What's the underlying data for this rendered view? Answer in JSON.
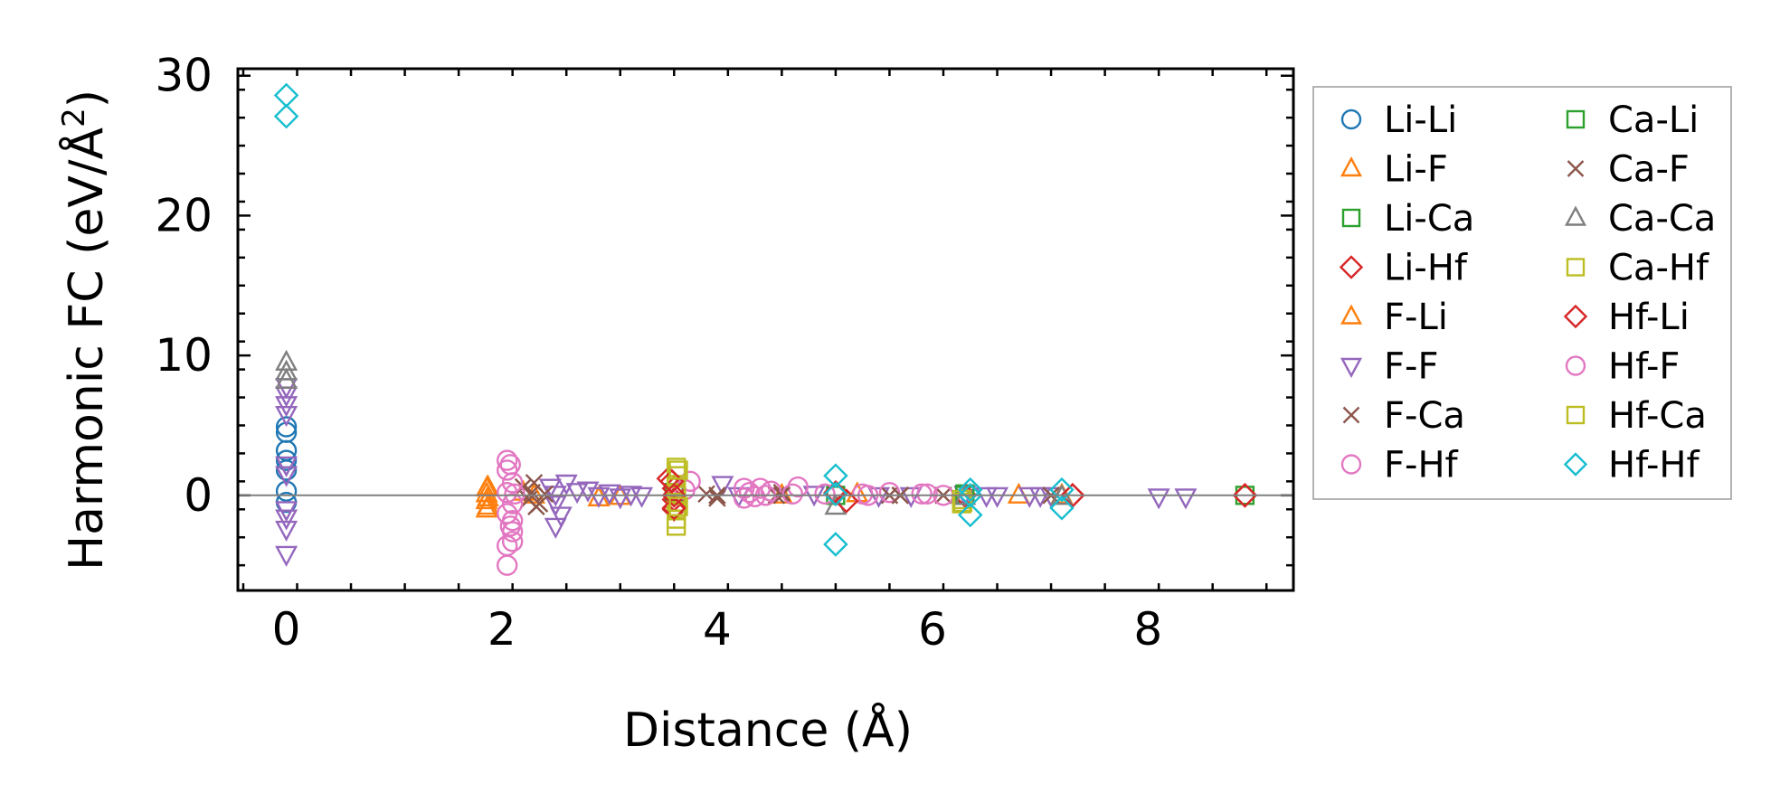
{
  "chart_data": {
    "type": "scatter",
    "xlabel": "Distance (Å)",
    "ylabel_main": "Harmonic FC (eV/Å",
    "ylabel_sup": "2",
    "ylabel_close": ")",
    "xlim": [
      -0.45,
      9.35
    ],
    "ylim": [
      -6.8,
      30.5
    ],
    "x_ticks": [
      0,
      2,
      4,
      6,
      8
    ],
    "y_ticks": [
      0,
      10,
      20,
      30
    ],
    "x_tick_labels": [
      "0",
      "2",
      "4",
      "6",
      "8"
    ],
    "y_tick_labels": [
      "0",
      "10",
      "20",
      "30"
    ],
    "zero_line": 0,
    "legend_position": "outside-right",
    "series": [
      {
        "name": "Li-Li",
        "marker": "circle",
        "color": "#1f77b4",
        "points": [
          [
            0,
            4.9
          ],
          [
            0,
            4.5
          ],
          [
            0,
            3.2
          ],
          [
            0,
            2.5
          ],
          [
            0,
            1.8
          ],
          [
            0,
            0.3
          ],
          [
            0,
            -0.5
          ]
        ]
      },
      {
        "name": "Li-F",
        "marker": "triangle-up",
        "color": "#ff7f0e",
        "points": [
          [
            1.86,
            0.5
          ],
          [
            1.86,
            0.1
          ],
          [
            1.86,
            -0.4
          ],
          [
            1.86,
            -1.0
          ],
          [
            2.2,
            0.2
          ],
          [
            2.9,
            -0.2
          ],
          [
            3.1,
            -0.1
          ],
          [
            5.3,
            0.1
          ],
          [
            6.8,
            0.0
          ]
        ]
      },
      {
        "name": "Li-Ca",
        "marker": "square",
        "color": "#2ca02c",
        "points": [
          [
            3.6,
            0.2
          ],
          [
            5.1,
            0.0
          ],
          [
            6.3,
            0.1
          ],
          [
            8.9,
            0.0
          ]
        ]
      },
      {
        "name": "Li-Hf",
        "marker": "diamond",
        "color": "#d62728",
        "points": [
          [
            3.55,
            1.2
          ],
          [
            3.6,
            0.5
          ],
          [
            3.6,
            -0.3
          ],
          [
            3.6,
            -1.0
          ],
          [
            5.1,
            0.2
          ],
          [
            6.3,
            0.0
          ],
          [
            7.3,
            0.0
          ],
          [
            8.9,
            0.0
          ]
        ]
      },
      {
        "name": "F-Li",
        "marker": "triangle-up",
        "color": "#ff7f0e",
        "points": [
          [
            1.87,
            0.6
          ],
          [
            1.87,
            -0.2
          ],
          [
            1.87,
            -0.8
          ],
          [
            2.3,
            0.0
          ],
          [
            4.6,
            0.0
          ],
          [
            7.2,
            0.0
          ]
        ]
      },
      {
        "name": "F-F",
        "marker": "triangle-down",
        "color": "#9467bd",
        "points": [
          [
            0,
            7.8
          ],
          [
            0,
            7.2
          ],
          [
            0,
            6.5
          ],
          [
            0,
            5.8
          ],
          [
            0,
            2.2
          ],
          [
            0,
            1.5
          ],
          [
            0,
            -1.0
          ],
          [
            0,
            -1.6
          ],
          [
            0,
            -2.4
          ],
          [
            0,
            -4.2
          ],
          [
            2.45,
            0.6
          ],
          [
            2.5,
            0.1
          ],
          [
            2.5,
            -0.6
          ],
          [
            2.55,
            -1.4
          ],
          [
            2.5,
            -2.2
          ],
          [
            2.6,
            0.9
          ],
          [
            2.7,
            0.3
          ],
          [
            2.8,
            0.4
          ],
          [
            2.9,
            0.0
          ],
          [
            3.0,
            0.2
          ],
          [
            3.1,
            -0.1
          ],
          [
            3.2,
            0.1
          ],
          [
            3.3,
            0.0
          ],
          [
            4.05,
            0.8
          ],
          [
            4.2,
            0.0
          ],
          [
            4.9,
            0.1
          ],
          [
            5.5,
            0.0
          ],
          [
            5.8,
            0.0
          ],
          [
            6.3,
            0.1
          ],
          [
            6.5,
            0.0
          ],
          [
            6.6,
            0.0
          ],
          [
            6.9,
            0.0
          ],
          [
            7.0,
            0.0
          ],
          [
            7.1,
            0.0
          ],
          [
            8.1,
            -0.1
          ],
          [
            8.35,
            -0.1
          ]
        ]
      },
      {
        "name": "F-Ca",
        "marker": "x",
        "color": "#8c564b",
        "points": [
          [
            2.2,
            0.6
          ],
          [
            2.25,
            -0.3
          ],
          [
            2.3,
            0.9
          ],
          [
            2.35,
            -0.6
          ],
          [
            2.4,
            0.1
          ],
          [
            3.9,
            0.1
          ],
          [
            4.0,
            -0.2
          ],
          [
            4.55,
            0.0
          ],
          [
            4.6,
            0.2
          ],
          [
            5.6,
            0.0
          ],
          [
            5.7,
            0.0
          ],
          [
            6.1,
            0.0
          ],
          [
            7.1,
            0.0
          ]
        ]
      },
      {
        "name": "F-Hf",
        "marker": "circle",
        "color": "#e377c2",
        "points": [
          [
            2.05,
            2.5
          ],
          [
            2.05,
            1.8
          ],
          [
            2.1,
            0.9
          ],
          [
            2.05,
            0.2
          ],
          [
            2.1,
            -0.6
          ],
          [
            2.05,
            -1.3
          ],
          [
            2.1,
            -2.6
          ],
          [
            2.1,
            -3.3
          ],
          [
            2.05,
            -3.6
          ],
          [
            2.05,
            -5.0
          ],
          [
            2.1,
            -1.8
          ],
          [
            3.75,
            1.0
          ],
          [
            3.7,
            0.4
          ],
          [
            4.25,
            0.5
          ],
          [
            4.3,
            0.2
          ],
          [
            4.35,
            -0.1
          ],
          [
            4.4,
            0.5
          ],
          [
            4.5,
            0.3
          ],
          [
            4.75,
            0.6
          ],
          [
            5.0,
            0.1
          ],
          [
            5.35,
            0.1
          ],
          [
            5.6,
            0.2
          ],
          [
            5.9,
            0.1
          ],
          [
            6.1,
            0.0
          ]
        ]
      },
      {
        "name": "Ca-Li",
        "marker": "square",
        "color": "#2ca02c",
        "points": [
          [
            3.62,
            0.0
          ],
          [
            6.3,
            0.0
          ]
        ]
      },
      {
        "name": "Ca-F",
        "marker": "x",
        "color": "#8c564b",
        "points": [
          [
            2.28,
            0.2
          ],
          [
            2.32,
            -0.8
          ],
          [
            4.0,
            0.0
          ],
          [
            4.6,
            0.0
          ],
          [
            5.7,
            0.0
          ]
        ]
      },
      {
        "name": "Ca-Ca",
        "marker": "triangle-up",
        "color": "#7f7f7f",
        "points": [
          [
            0,
            9.5
          ],
          [
            0,
            8.8
          ],
          [
            0,
            8.2
          ],
          [
            5.1,
            -0.8
          ],
          [
            6.3,
            -0.1
          ],
          [
            7.2,
            -0.1
          ]
        ]
      },
      {
        "name": "Ca-Hf",
        "marker": "square",
        "color": "#bcbd22",
        "points": [
          [
            3.62,
            2.0
          ],
          [
            3.62,
            1.4
          ],
          [
            3.62,
            0.6
          ],
          [
            3.62,
            0.0
          ],
          [
            3.62,
            -0.5
          ],
          [
            3.62,
            -1.1
          ],
          [
            3.62,
            -1.7
          ],
          [
            3.62,
            -2.2
          ],
          [
            6.27,
            -0.3
          ],
          [
            6.27,
            -0.6
          ]
        ]
      },
      {
        "name": "Hf-Li",
        "marker": "diamond",
        "color": "#d62728",
        "points": [
          [
            3.58,
            1.0
          ],
          [
            3.6,
            0.0
          ],
          [
            3.6,
            -0.9
          ],
          [
            5.1,
            0.1
          ],
          [
            5.2,
            -0.4
          ],
          [
            7.3,
            0.0
          ],
          [
            8.9,
            0.0
          ]
        ]
      },
      {
        "name": "Hf-F",
        "marker": "circle",
        "color": "#e377c2",
        "points": [
          [
            2.08,
            2.2
          ],
          [
            2.08,
            -2.2
          ],
          [
            2.12,
            0.1
          ],
          [
            4.25,
            -0.2
          ],
          [
            4.45,
            0.0
          ],
          [
            4.7,
            0.1
          ],
          [
            5.4,
            0.0
          ],
          [
            5.95,
            0.1
          ]
        ]
      },
      {
        "name": "Hf-Ca",
        "marker": "square",
        "color": "#bcbd22",
        "points": [
          [
            3.64,
            1.8
          ],
          [
            3.64,
            -0.8
          ],
          [
            6.28,
            -0.5
          ]
        ]
      },
      {
        "name": "Hf-Hf",
        "marker": "diamond",
        "color": "#17becf",
        "points": [
          [
            0,
            28.6
          ],
          [
            0,
            27.1
          ],
          [
            5.1,
            1.4
          ],
          [
            5.1,
            0.1
          ],
          [
            5.1,
            -3.5
          ],
          [
            6.35,
            0.4
          ],
          [
            6.35,
            0.0
          ],
          [
            6.35,
            -1.4
          ],
          [
            7.2,
            0.4
          ],
          [
            7.2,
            -0.9
          ]
        ]
      }
    ]
  }
}
